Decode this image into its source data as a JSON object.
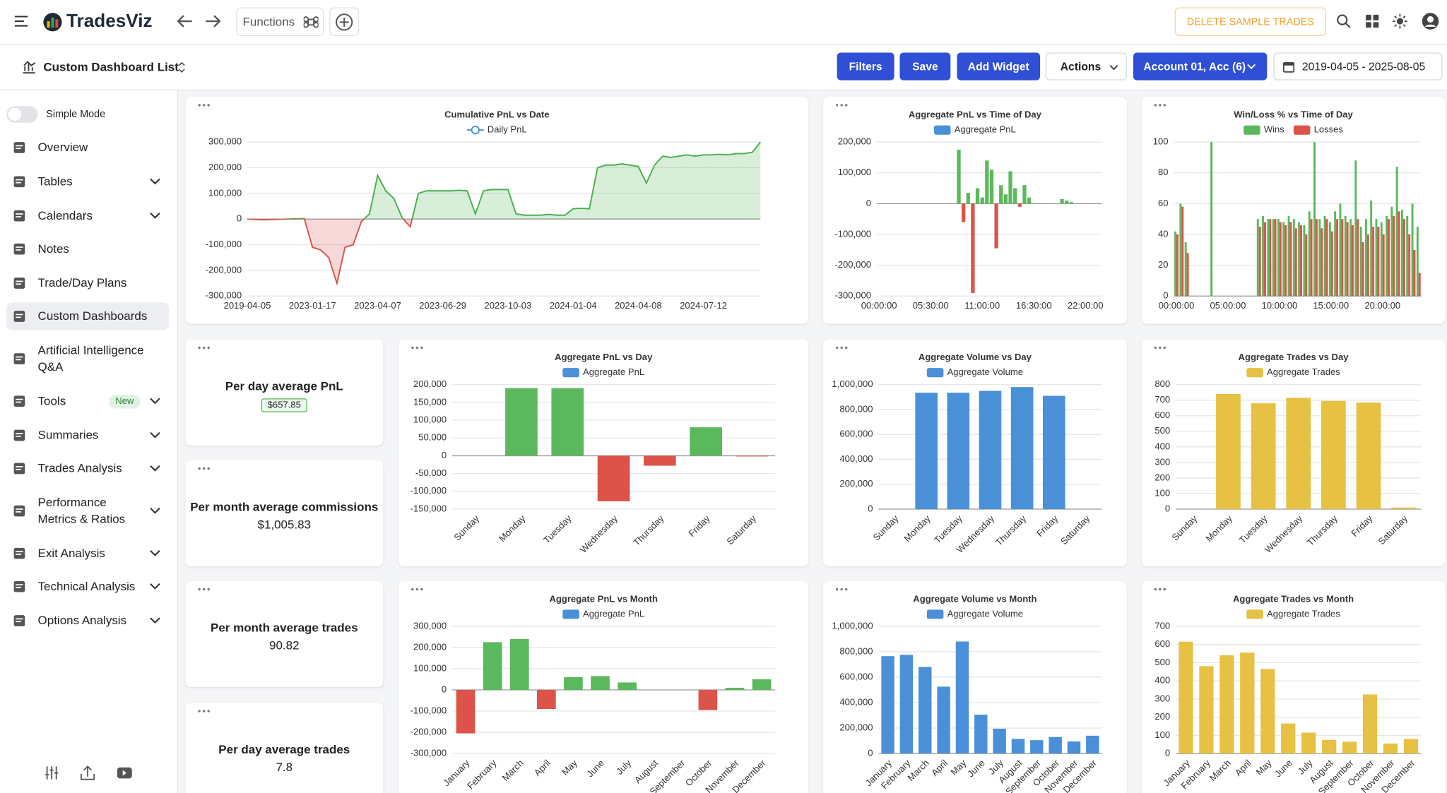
{
  "header": {
    "brand": "TradesViz",
    "functions": "Functions",
    "delete_button": "DELETE SAMPLE TRADES"
  },
  "toolbar": {
    "dashboard_list": "Custom Dashboard List",
    "buttons": [
      "Filters",
      "Save",
      "Add Widget"
    ],
    "actions": "Actions",
    "account": "Account 01, Acc (6)",
    "date_range": "2019-04-05 - 2025-08-05"
  },
  "sidebar": {
    "simple_mode": "Simple Mode",
    "items": [
      {
        "label": "Overview"
      },
      {
        "label": "Tables",
        "expandable": true
      },
      {
        "label": "Calendars",
        "expandable": true
      },
      {
        "label": "Notes"
      },
      {
        "label": "Trade/Day Plans"
      },
      {
        "label": "Custom Dashboards",
        "active": true
      },
      {
        "label": "Artificial Intelligence Q&A"
      },
      {
        "label": "Tools",
        "badge": "New",
        "expandable": true
      },
      {
        "label": "Summaries",
        "expandable": true
      },
      {
        "label": "Trades Analysis",
        "expandable": true
      },
      {
        "label": "Performance Metrics & Ratios",
        "expandable": true
      },
      {
        "label": "Exit Analysis",
        "expandable": true
      },
      {
        "label": "Technical Analysis",
        "expandable": true
      },
      {
        "label": "Options Analysis",
        "expandable": true
      }
    ]
  },
  "stats": [
    {
      "title": "Per day average PnL",
      "value": "$657.85",
      "highlight": true
    },
    {
      "title": "Per month average commissions",
      "value": "$1,005.83"
    },
    {
      "title": "Per month average trades",
      "value": "90.82"
    },
    {
      "title": "Per day average trades",
      "value": "7.8"
    }
  ],
  "chart_data": [
    {
      "type": "line",
      "title": "Cumulative PnL vs Date",
      "positive_color": "#4caf50",
      "negative_color": "#d9534f",
      "categories": [
        "2019-04-05",
        null,
        null,
        null,
        null,
        null,
        null,
        null,
        "2023-01-17",
        null,
        null,
        null,
        null,
        null,
        null,
        null,
        "2023-04-07",
        null,
        null,
        null,
        null,
        null,
        null,
        null,
        "2023-06-29",
        null,
        null,
        null,
        null,
        null,
        null,
        null,
        "2023-10-03",
        null,
        null,
        null,
        null,
        null,
        null,
        null,
        "2024-01-04",
        null,
        null,
        null,
        null,
        null,
        null,
        null,
        "2024-04-08",
        null,
        null,
        null,
        null,
        null,
        null,
        null,
        "2024-07-12",
        null,
        null,
        null,
        null,
        null,
        null,
        null
      ],
      "series": [
        {
          "name": "Daily PnL",
          "color": "#4a90d9",
          "values": [
            0,
            -2000,
            -3000,
            -2000,
            -1000,
            0,
            1000,
            2000,
            -110000,
            -120000,
            -150000,
            -250000,
            -110000,
            -100000,
            -10000,
            20000,
            170000,
            110000,
            80000,
            5000,
            -30000,
            100000,
            110000,
            110000,
            110000,
            110000,
            112000,
            110000,
            20000,
            110000,
            115000,
            115000,
            115000,
            20000,
            15000,
            15000,
            15000,
            18000,
            15000,
            15000,
            40000,
            42000,
            40000,
            200000,
            210000,
            210000,
            215000,
            210000,
            205000,
            140000,
            210000,
            245000,
            240000,
            245000,
            250000,
            245000,
            250000,
            250000,
            252000,
            250000,
            255000,
            255000,
            260000,
            300000
          ]
        }
      ],
      "ylim": [
        -300000,
        300000
      ],
      "yticks": [
        {
          "value": 300000,
          "label": "300,000"
        },
        {
          "value": 200000,
          "label": "200,000"
        },
        {
          "value": 100000,
          "label": "100,000"
        },
        0,
        {
          "value": -100000,
          "label": "-100,000"
        },
        {
          "value": -200000,
          "label": "-200,000"
        },
        {
          "value": -300000,
          "label": "-300,000"
        }
      ]
    },
    {
      "type": "bar",
      "title": "Aggregate PnL vs Time of Day",
      "positive_color": "#5cb85c",
      "negative_color": "#dc5349",
      "categories": [
        "00:00:00",
        null,
        null,
        null,
        null,
        null,
        null,
        null,
        null,
        null,
        null,
        "05:30:00",
        null,
        null,
        null,
        null,
        null,
        null,
        null,
        null,
        null,
        null,
        "11:00:00",
        null,
        null,
        null,
        null,
        null,
        null,
        null,
        null,
        null,
        null,
        "16:30:00",
        null,
        null,
        null,
        null,
        null,
        null,
        null,
        null,
        null,
        null,
        "22:00:00",
        null,
        null,
        null
      ],
      "series": [
        {
          "name": "Aggregate PnL",
          "color": "#4a90d9",
          "values": [
            0,
            0,
            0,
            0,
            0,
            0,
            0,
            0,
            0,
            0,
            0,
            0,
            0,
            0,
            0,
            0,
            0,
            175000,
            -60000,
            35000,
            -290000,
            50000,
            20000,
            140000,
            110000,
            -145000,
            60000,
            30000,
            105000,
            50000,
            -10000,
            60000,
            20000,
            0,
            0,
            0,
            0,
            0,
            0,
            15000,
            10000,
            5000,
            0,
            0,
            0,
            0,
            0,
            0
          ]
        }
      ],
      "ylim": [
        -300000,
        200000
      ],
      "yticks": [
        {
          "value": 200000,
          "label": "200,000"
        },
        {
          "value": 100000,
          "label": "100,000"
        },
        0,
        {
          "value": -100000,
          "label": "-100,000"
        },
        {
          "value": -200000,
          "label": "-200,000"
        },
        {
          "value": -300000,
          "label": "-300,000"
        }
      ]
    },
    {
      "type": "bar",
      "title": "Win/Loss % vs Time of Day",
      "categories": [
        "00:00:00",
        null,
        null,
        null,
        null,
        null,
        null,
        null,
        null,
        null,
        "05:00:00",
        null,
        null,
        null,
        null,
        null,
        null,
        null,
        null,
        null,
        "10:00:00",
        null,
        null,
        null,
        null,
        null,
        null,
        null,
        null,
        null,
        "15:00:00",
        null,
        null,
        null,
        null,
        null,
        null,
        null,
        null,
        null,
        "20:00:00",
        null,
        null,
        null,
        null,
        null,
        null,
        null
      ],
      "series": [
        {
          "name": "Wins",
          "color": "#5cb85c",
          "values": [
            42,
            60,
            35,
            0,
            0,
            0,
            0,
            100,
            0,
            0,
            0,
            0,
            0,
            0,
            0,
            0,
            50,
            52,
            50,
            50,
            50,
            48,
            52,
            50,
            48,
            46,
            55,
            100,
            50,
            52,
            48,
            55,
            60,
            52,
            50,
            88,
            45,
            50,
            62,
            50,
            48,
            52,
            58,
            84,
            56,
            52,
            60,
            45
          ]
        },
        {
          "name": "Losses",
          "color": "#dc5349",
          "values": [
            40,
            58,
            28,
            0,
            0,
            0,
            0,
            0,
            0,
            0,
            0,
            0,
            0,
            0,
            0,
            0,
            45,
            48,
            50,
            50,
            48,
            46,
            48,
            44,
            46,
            40,
            50,
            50,
            44,
            50,
            42,
            50,
            50,
            48,
            46,
            50,
            35,
            40,
            45,
            45,
            40,
            50,
            52,
            55,
            50,
            40,
            30,
            15
          ]
        }
      ],
      "ylim": [
        0,
        100
      ],
      "yticks": [
        100,
        80,
        60,
        40,
        20,
        0
      ]
    },
    {
      "type": "bar",
      "title": "Aggregate PnL vs Day",
      "positive_color": "#5cb85c",
      "negative_color": "#dc5349",
      "categories": [
        "Sunday",
        "Monday",
        "Tuesday",
        "Wednesday",
        "Thursday",
        "Friday",
        "Saturday"
      ],
      "series": [
        {
          "name": "Aggregate PnL",
          "color": "#4a90d9",
          "values": [
            0,
            190000,
            190000,
            -128000,
            -28000,
            80000,
            -2000
          ]
        }
      ],
      "ylim": [
        -150000,
        200000
      ],
      "yticks": [
        {
          "value": 200000,
          "label": "200,000"
        },
        {
          "value": 150000,
          "label": "150,000"
        },
        {
          "value": 100000,
          "label": "100,000"
        },
        {
          "value": 50000,
          "label": "50,000"
        },
        0,
        {
          "value": -50000,
          "label": "-50,000"
        },
        {
          "value": -100000,
          "label": "-100,000"
        },
        {
          "value": -150000,
          "label": "-150,000"
        }
      ]
    },
    {
      "type": "bar",
      "title": "Aggregate Volume vs Day",
      "categories": [
        "Sunday",
        "Monday",
        "Tuesday",
        "Wednesday",
        "Thursday",
        "Friday",
        "Saturday"
      ],
      "series": [
        {
          "name": "Aggregate Volume",
          "color": "#4a90d9",
          "values": [
            0,
            935000,
            935000,
            950000,
            980000,
            910000,
            0
          ]
        }
      ],
      "ylim": [
        0,
        1000000
      ],
      "yticks": [
        {
          "value": 1000000,
          "label": "1,000,000"
        },
        {
          "value": 800000,
          "label": "800,000"
        },
        {
          "value": 600000,
          "label": "600,000"
        },
        {
          "value": 400000,
          "label": "400,000"
        },
        {
          "value": 200000,
          "label": "200,000"
        },
        0
      ]
    },
    {
      "type": "bar",
      "title": "Aggregate Trades vs Day",
      "categories": [
        "Sunday",
        "Monday",
        "Tuesday",
        "Wednesday",
        "Thursday",
        "Friday",
        "Saturday"
      ],
      "series": [
        {
          "name": "Aggregate Trades",
          "color": "#e6c143",
          "values": [
            0,
            740,
            680,
            715,
            695,
            685,
            10
          ]
        }
      ],
      "ylim": [
        0,
        800
      ],
      "yticks": [
        800,
        700,
        600,
        500,
        400,
        300,
        200,
        100,
        0
      ]
    },
    {
      "type": "bar",
      "title": "Aggregate PnL vs Month",
      "positive_color": "#5cb85c",
      "negative_color": "#dc5349",
      "categories": [
        "January",
        "February",
        "March",
        "April",
        "May",
        "June",
        "July",
        "August",
        "September",
        "October",
        "November",
        "December"
      ],
      "series": [
        {
          "name": "Aggregate PnL",
          "color": "#4a90d9",
          "values": [
            -205000,
            225000,
            240000,
            -90000,
            60000,
            65000,
            35000,
            0,
            0,
            -95000,
            10000,
            50000
          ]
        }
      ],
      "ylim": [
        -300000,
        300000
      ],
      "yticks": [
        {
          "value": 300000,
          "label": "300,000"
        },
        {
          "value": 200000,
          "label": "200,000"
        },
        {
          "value": 100000,
          "label": "100,000"
        },
        0,
        {
          "value": -100000,
          "label": "-100,000"
        },
        {
          "value": -200000,
          "label": "-200,000"
        },
        {
          "value": -300000,
          "label": "-300,000"
        }
      ]
    },
    {
      "type": "bar",
      "title": "Aggregate Volume vs Month",
      "categories": [
        "January",
        "February",
        "March",
        "April",
        "May",
        "June",
        "July",
        "August",
        "September",
        "October",
        "November",
        "December"
      ],
      "series": [
        {
          "name": "Aggregate Volume",
          "color": "#4a90d9",
          "values": [
            765000,
            775000,
            680000,
            525000,
            880000,
            305000,
            195000,
            115000,
            105000,
            130000,
            95000,
            140000
          ]
        }
      ],
      "ylim": [
        0,
        1000000
      ],
      "yticks": [
        {
          "value": 1000000,
          "label": "1,000,000"
        },
        {
          "value": 800000,
          "label": "800,000"
        },
        {
          "value": 600000,
          "label": "600,000"
        },
        {
          "value": 400000,
          "label": "400,000"
        },
        {
          "value": 200000,
          "label": "200,000"
        },
        0
      ]
    },
    {
      "type": "bar",
      "title": "Aggregate Trades vs Month",
      "categories": [
        "January",
        "February",
        "March",
        "April",
        "May",
        "June",
        "July",
        "August",
        "September",
        "October",
        "November",
        "December"
      ],
      "series": [
        {
          "name": "Aggregate Trades",
          "color": "#e6c143",
          "values": [
            615,
            480,
            540,
            555,
            465,
            165,
            115,
            75,
            65,
            325,
            55,
            80
          ]
        }
      ],
      "ylim": [
        0,
        700
      ],
      "yticks": [
        700,
        600,
        500,
        400,
        300,
        200,
        100,
        0
      ]
    }
  ]
}
